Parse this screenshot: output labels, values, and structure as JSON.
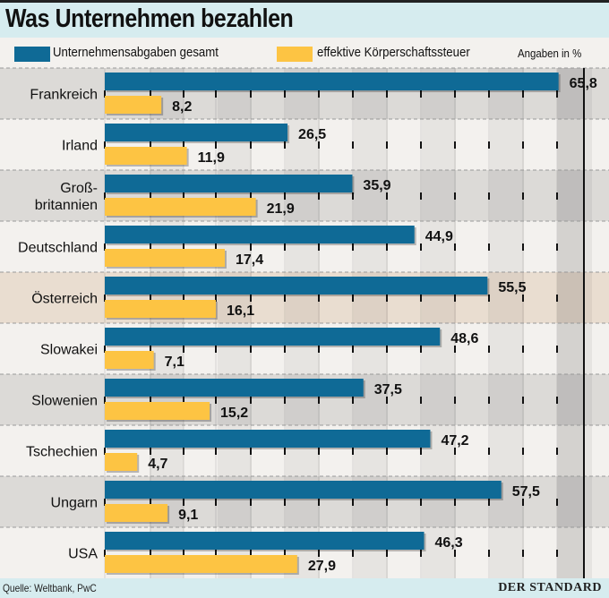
{
  "title": "Was Unternehmen bezahlen",
  "unit_note": "Angaben in %",
  "source": "Quelle: Weltbank, PwC",
  "logo": "DER STANDARD",
  "colors": {
    "total": "#0f6a96",
    "corporate": "#fdc443",
    "highlight_row": "#e9ddd0"
  },
  "chart_data": {
    "type": "bar",
    "orientation": "horizontal",
    "categories": [
      "Frankreich",
      "Irland",
      "Groß-\nbritannien",
      "Deutschland",
      "Österreich",
      "Slowakei",
      "Slowenien",
      "Tschechien",
      "Ungarn",
      "USA"
    ],
    "highlight": "Österreich",
    "series": [
      {
        "name": "Unternehmensabgaben gesamt",
        "values": [
          65.8,
          26.5,
          35.9,
          44.9,
          55.5,
          48.6,
          37.5,
          47.2,
          57.5,
          46.3
        ],
        "labels": [
          "65,8",
          "26,5",
          "35,9",
          "44,9",
          "55,5",
          "48,6",
          "37,5",
          "47,2",
          "57,5",
          "46,3"
        ]
      },
      {
        "name": "effektive Körperschaftssteuer",
        "values": [
          8.2,
          11.9,
          21.9,
          17.4,
          16.1,
          7.1,
          15.2,
          4.7,
          9.1,
          27.9
        ],
        "labels": [
          "8,2",
          "11,9",
          "21,9",
          "17,4",
          "16,1",
          "7,1",
          "15,2",
          "4,7",
          "9,1",
          "27,9"
        ]
      }
    ],
    "xlim": [
      0,
      70
    ],
    "legend": "top",
    "grid": true
  }
}
